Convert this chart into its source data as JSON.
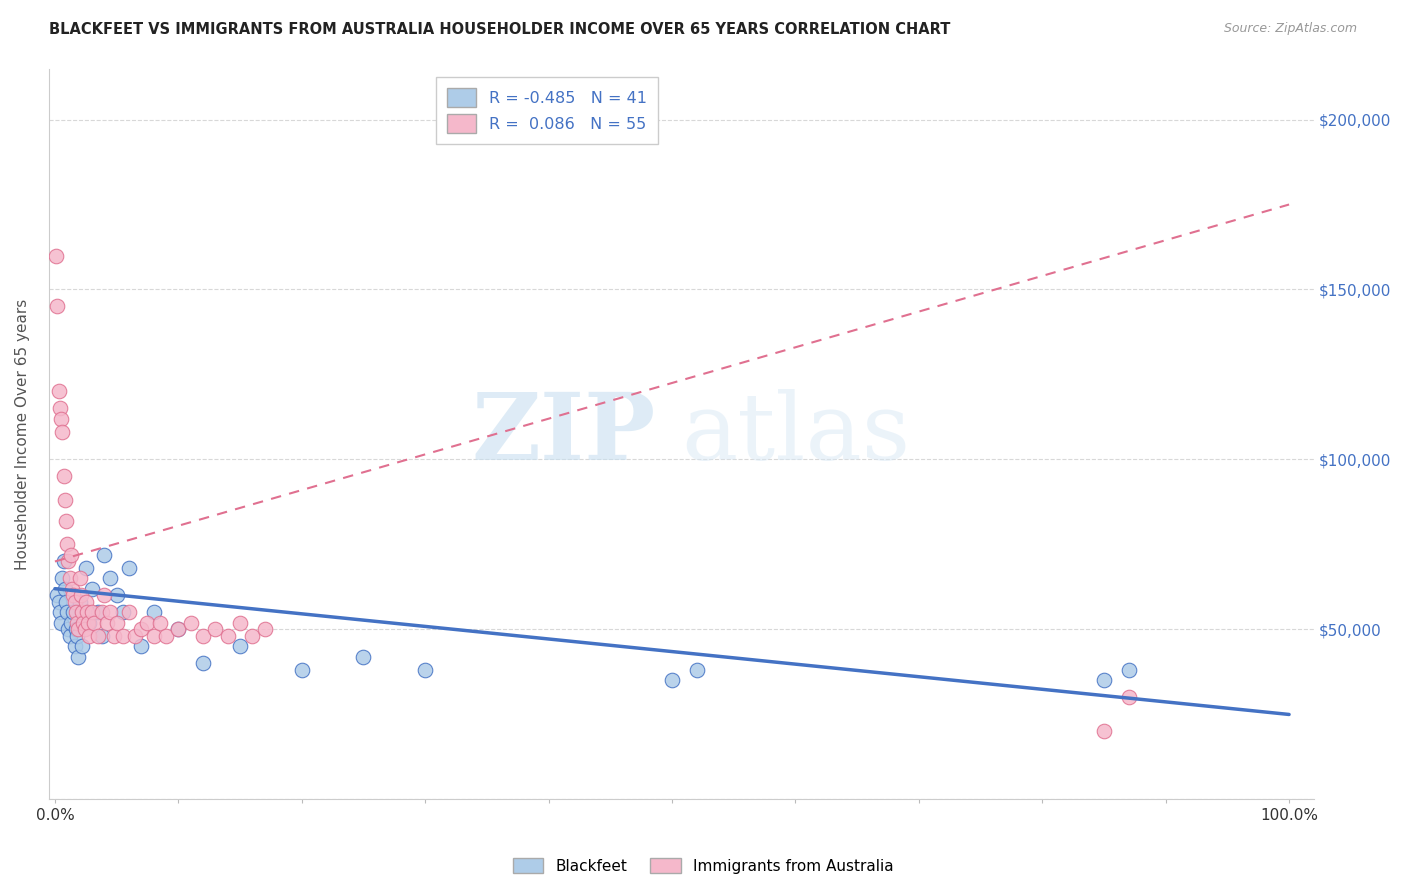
{
  "title": "BLACKFEET VS IMMIGRANTS FROM AUSTRALIA HOUSEHOLDER INCOME OVER 65 YEARS CORRELATION CHART",
  "source": "Source: ZipAtlas.com",
  "ylabel": "Householder Income Over 65 years",
  "watermark_zip": "ZIP",
  "watermark_atlas": "atlas",
  "legend_series": [
    {
      "label": "Blackfeet",
      "R": -0.485,
      "N": 41,
      "color": "#aecce8",
      "line_color": "#4472c4"
    },
    {
      "label": "Immigrants from Australia",
      "R": 0.086,
      "N": 55,
      "color": "#f5b8cb",
      "line_color": "#e07090"
    }
  ],
  "yticks": [
    0,
    50000,
    100000,
    150000,
    200000
  ],
  "ymax": 215000,
  "xmin": -0.005,
  "xmax": 1.02,
  "background_color": "#ffffff",
  "grid_color": "#d8d8d8",
  "blackfeet_x": [
    0.002,
    0.003,
    0.004,
    0.005,
    0.006,
    0.007,
    0.008,
    0.009,
    0.01,
    0.011,
    0.012,
    0.013,
    0.015,
    0.016,
    0.017,
    0.018,
    0.019,
    0.02,
    0.022,
    0.025,
    0.028,
    0.03,
    0.035,
    0.038,
    0.04,
    0.045,
    0.05,
    0.055,
    0.06,
    0.07,
    0.08,
    0.1,
    0.12,
    0.15,
    0.2,
    0.25,
    0.3,
    0.5,
    0.52,
    0.85,
    0.87
  ],
  "blackfeet_y": [
    60000,
    58000,
    55000,
    52000,
    65000,
    70000,
    62000,
    58000,
    55000,
    50000,
    48000,
    52000,
    55000,
    45000,
    50000,
    48000,
    42000,
    58000,
    45000,
    68000,
    52000,
    62000,
    55000,
    48000,
    72000,
    65000,
    60000,
    55000,
    68000,
    45000,
    55000,
    50000,
    40000,
    45000,
    38000,
    42000,
    38000,
    35000,
    38000,
    35000,
    38000
  ],
  "australia_x": [
    0.001,
    0.002,
    0.003,
    0.004,
    0.005,
    0.006,
    0.007,
    0.008,
    0.009,
    0.01,
    0.011,
    0.012,
    0.013,
    0.014,
    0.015,
    0.016,
    0.017,
    0.018,
    0.019,
    0.02,
    0.021,
    0.022,
    0.023,
    0.024,
    0.025,
    0.026,
    0.027,
    0.028,
    0.03,
    0.032,
    0.035,
    0.038,
    0.04,
    0.042,
    0.045,
    0.048,
    0.05,
    0.055,
    0.06,
    0.065,
    0.07,
    0.075,
    0.08,
    0.085,
    0.09,
    0.1,
    0.11,
    0.12,
    0.13,
    0.14,
    0.15,
    0.16,
    0.17,
    0.85,
    0.87
  ],
  "australia_y": [
    160000,
    145000,
    120000,
    115000,
    112000,
    108000,
    95000,
    88000,
    82000,
    75000,
    70000,
    65000,
    72000,
    62000,
    60000,
    58000,
    55000,
    52000,
    50000,
    65000,
    60000,
    55000,
    52000,
    50000,
    58000,
    55000,
    52000,
    48000,
    55000,
    52000,
    48000,
    55000,
    60000,
    52000,
    55000,
    48000,
    52000,
    48000,
    55000,
    48000,
    50000,
    52000,
    48000,
    52000,
    48000,
    50000,
    52000,
    48000,
    50000,
    48000,
    52000,
    48000,
    50000,
    20000,
    30000
  ]
}
